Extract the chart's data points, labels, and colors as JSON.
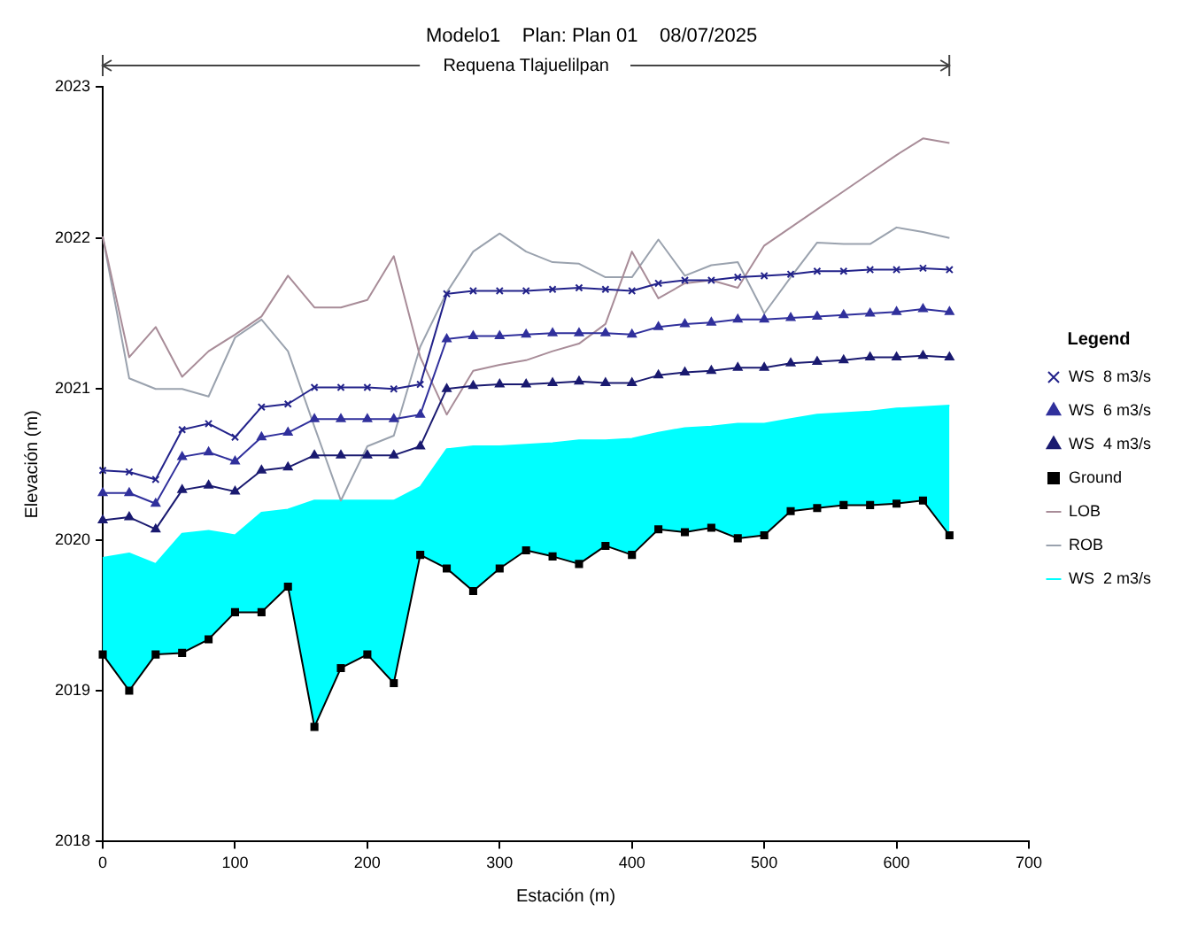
{
  "chart_data": {
    "type": "line",
    "title": "Modelo1    Plan: Plan 01    08/07/2025",
    "xlabel": "Estación (m)",
    "ylabel": "Elevación (m)",
    "legend_title": "Legend",
    "annotations": [
      "Requena Tlajuelilpan"
    ],
    "x": [
      0,
      20,
      40,
      60,
      80,
      100,
      120,
      140,
      160,
      180,
      200,
      220,
      240,
      260,
      280,
      300,
      320,
      340,
      360,
      380,
      400,
      420,
      440,
      460,
      480,
      500,
      520,
      540,
      560,
      580,
      600,
      620,
      640
    ],
    "series": [
      {
        "name": "WS  8 m3/s",
        "color": "#22228a",
        "marker": "cross",
        "values": [
          2020.46,
          2020.45,
          2020.4,
          2020.73,
          2020.77,
          2020.68,
          2020.88,
          2020.9,
          2021.01,
          2021.01,
          2021.01,
          2021.0,
          2021.03,
          2021.63,
          2021.65,
          2021.65,
          2021.65,
          2021.66,
          2021.67,
          2021.66,
          2021.65,
          2021.7,
          2021.72,
          2021.72,
          2021.74,
          2021.75,
          2021.76,
          2021.78,
          2021.78,
          2021.79,
          2021.79,
          2021.8,
          2021.79
        ]
      },
      {
        "name": "WS  6 m3/s",
        "color": "#30309c",
        "marker": "triangle",
        "values": [
          2020.31,
          2020.31,
          2020.24,
          2020.55,
          2020.58,
          2020.52,
          2020.68,
          2020.71,
          2020.8,
          2020.8,
          2020.8,
          2020.8,
          2020.83,
          2021.33,
          2021.35,
          2021.35,
          2021.36,
          2021.37,
          2021.37,
          2021.37,
          2021.36,
          2021.41,
          2021.43,
          2021.44,
          2021.46,
          2021.46,
          2021.47,
          2021.48,
          2021.49,
          2021.5,
          2021.51,
          2021.53,
          2021.51
        ]
      },
      {
        "name": "WS  4 m3/s",
        "color": "#1a1a70",
        "marker": "triangle",
        "values": [
          2020.13,
          2020.15,
          2020.07,
          2020.33,
          2020.36,
          2020.32,
          2020.46,
          2020.48,
          2020.56,
          2020.56,
          2020.56,
          2020.56,
          2020.62,
          2021.0,
          2021.02,
          2021.03,
          2021.03,
          2021.04,
          2021.05,
          2021.04,
          2021.04,
          2021.09,
          2021.11,
          2021.12,
          2021.14,
          2021.14,
          2021.17,
          2021.18,
          2021.19,
          2021.21,
          2021.21,
          2021.22,
          2021.21
        ]
      },
      {
        "name": "WS  2 m3/s",
        "type": "area",
        "color": "#00ffff",
        "marker": "none",
        "values": [
          2019.88,
          2019.91,
          2019.84,
          2020.04,
          2020.06,
          2020.03,
          2020.18,
          2020.2,
          2020.26,
          2020.26,
          2020.26,
          2020.26,
          2020.35,
          2020.6,
          2020.62,
          2020.62,
          2020.63,
          2020.64,
          2020.66,
          2020.66,
          2020.67,
          2020.71,
          2020.74,
          2020.75,
          2020.77,
          2020.77,
          2020.8,
          2020.83,
          2020.84,
          2020.85,
          2020.87,
          2020.88,
          2020.89
        ]
      },
      {
        "name": "Ground",
        "color": "#000000",
        "marker": "square",
        "values": [
          2019.24,
          2019.0,
          2019.24,
          2019.25,
          2019.34,
          2019.52,
          2019.52,
          2019.69,
          2018.76,
          2019.15,
          2019.24,
          2019.05,
          2019.9,
          2019.81,
          2019.66,
          2019.81,
          2019.93,
          2019.89,
          2019.84,
          2019.96,
          2019.9,
          2020.07,
          2020.05,
          2020.08,
          2020.01,
          2020.03,
          2020.19,
          2020.21,
          2020.23,
          2020.23,
          2020.24,
          2020.26,
          2020.03
        ]
      },
      {
        "name": "LOB",
        "color": "#a88c98",
        "marker": "none",
        "values": [
          2022.01,
          2021.21,
          2021.41,
          2021.08,
          2021.25,
          2021.36,
          2021.48,
          2021.75,
          2021.54,
          2021.54,
          2021.59,
          2021.88,
          2021.21,
          2020.83,
          2021.12,
          2021.16,
          2021.19,
          2021.25,
          2021.3,
          2021.43,
          2021.91,
          2021.6,
          2021.7,
          2021.72,
          2021.67,
          2021.95,
          2022.07,
          2022.19,
          2022.31,
          2022.43,
          2022.55,
          2022.66,
          2022.63
        ]
      },
      {
        "name": "ROB",
        "color": "#9aa2ae",
        "marker": "none",
        "values": [
          2022.01,
          2021.07,
          2021.0,
          2021.0,
          2020.95,
          2021.34,
          2021.46,
          2021.25,
          2020.75,
          2020.26,
          2020.62,
          2020.69,
          2021.28,
          2021.64,
          2021.91,
          2022.03,
          2021.91,
          2021.84,
          2021.83,
          2021.74,
          2021.74,
          2021.99,
          2021.75,
          2021.82,
          2021.84,
          2021.5,
          2021.74,
          2021.97,
          2021.96,
          2021.96,
          2022.07,
          2022.04,
          2022.0
        ]
      }
    ],
    "xlim": [
      0,
      700
    ],
    "xticks": [
      0,
      100,
      200,
      300,
      400,
      500,
      600,
      700
    ],
    "ylim": [
      2018,
      2023
    ],
    "yticks": [
      2018,
      2019,
      2020,
      2021,
      2022,
      2023
    ],
    "grid": false,
    "legend": "right",
    "line_style": "solid"
  }
}
